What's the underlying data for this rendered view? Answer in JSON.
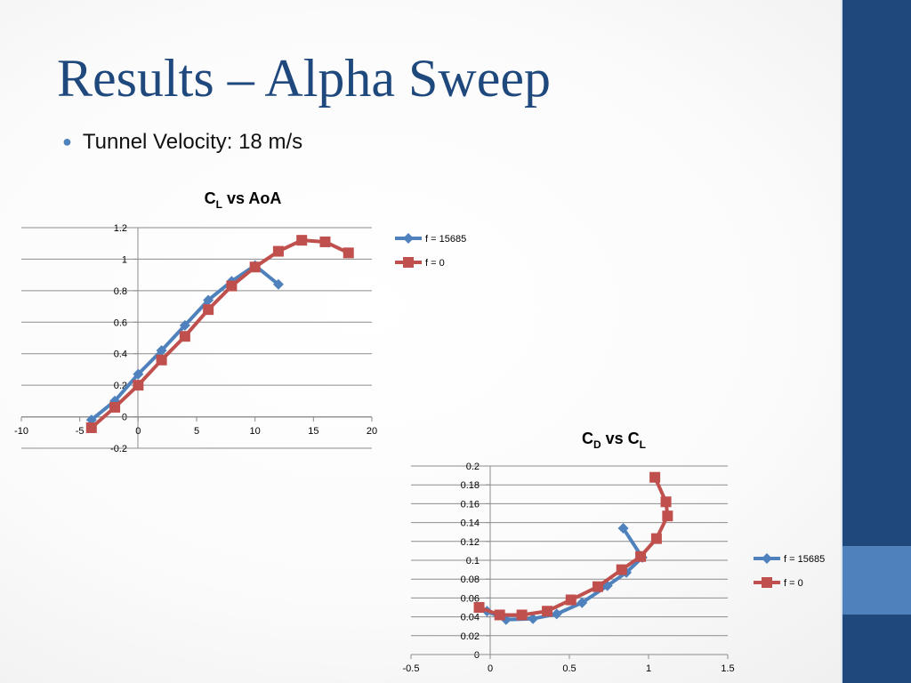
{
  "slide": {
    "title": "Results – Alpha Sweep",
    "bullet": "Tunnel Velocity: 18 m/s"
  },
  "colors": {
    "blue_series": "#4f81bd",
    "red_series": "#c0504d",
    "accent": "#1f497d",
    "accent_light": "#4f81bd"
  },
  "chart_data": [
    {
      "type": "line",
      "title_main": "C",
      "title_sub": "L",
      "title_rest": " vs AoA",
      "xlim": [
        -10,
        20
      ],
      "ylim": [
        -0.2,
        1.2
      ],
      "x_ticks": [
        "-10",
        "-5",
        "0",
        "5",
        "10",
        "15",
        "20"
      ],
      "y_ticks": [
        "-0.2",
        "0",
        "0.2",
        "0.4",
        "0.6",
        "0.8",
        "1",
        "1.2"
      ],
      "grid": "horizontal",
      "legend_position": "right",
      "series": [
        {
          "name": "f = 15685",
          "marker": "diamond",
          "points": [
            [
              -4,
              -0.02
            ],
            [
              -2,
              0.1
            ],
            [
              0,
              0.27
            ],
            [
              2,
              0.42
            ],
            [
              4,
              0.58
            ],
            [
              6,
              0.74
            ],
            [
              8,
              0.86
            ],
            [
              10,
              0.96
            ],
            [
              12,
              0.84
            ]
          ]
        },
        {
          "name": "f = 0",
          "marker": "square",
          "points": [
            [
              -4,
              -0.07
            ],
            [
              -2,
              0.06
            ],
            [
              0,
              0.2
            ],
            [
              2,
              0.36
            ],
            [
              4,
              0.51
            ],
            [
              6,
              0.68
            ],
            [
              8,
              0.83
            ],
            [
              10,
              0.95
            ],
            [
              12,
              1.05
            ],
            [
              14,
              1.12
            ],
            [
              16,
              1.11
            ],
            [
              18,
              1.04
            ]
          ]
        }
      ]
    },
    {
      "type": "line",
      "title_main": "C",
      "title_sub": "D",
      "title_rest": " vs C",
      "title_sub2": "L",
      "xlim": [
        -0.5,
        1.5
      ],
      "ylim": [
        0,
        0.2
      ],
      "x_ticks": [
        "-0.5",
        "0",
        "0.5",
        "1",
        "1.5"
      ],
      "y_ticks": [
        "0",
        "0.02",
        "0.04",
        "0.06",
        "0.08",
        "0.1",
        "0.12",
        "0.14",
        "0.16",
        "0.18",
        "0.2"
      ],
      "grid": "horizontal",
      "legend_position": "right",
      "series": [
        {
          "name": "f = 15685",
          "marker": "diamond",
          "points": [
            [
              -0.02,
              0.046
            ],
            [
              0.1,
              0.037
            ],
            [
              0.27,
              0.038
            ],
            [
              0.42,
              0.043
            ],
            [
              0.58,
              0.055
            ],
            [
              0.74,
              0.073
            ],
            [
              0.86,
              0.087
            ],
            [
              0.96,
              0.103
            ],
            [
              0.84,
              0.134
            ]
          ]
        },
        {
          "name": "f = 0",
          "marker": "square",
          "points": [
            [
              -0.07,
              0.05
            ],
            [
              0.06,
              0.042
            ],
            [
              0.2,
              0.042
            ],
            [
              0.36,
              0.046
            ],
            [
              0.51,
              0.058
            ],
            [
              0.68,
              0.072
            ],
            [
              0.83,
              0.09
            ],
            [
              0.95,
              0.104
            ],
            [
              1.05,
              0.123
            ],
            [
              1.12,
              0.147
            ],
            [
              1.11,
              0.162
            ],
            [
              1.04,
              0.188
            ]
          ]
        }
      ]
    }
  ]
}
